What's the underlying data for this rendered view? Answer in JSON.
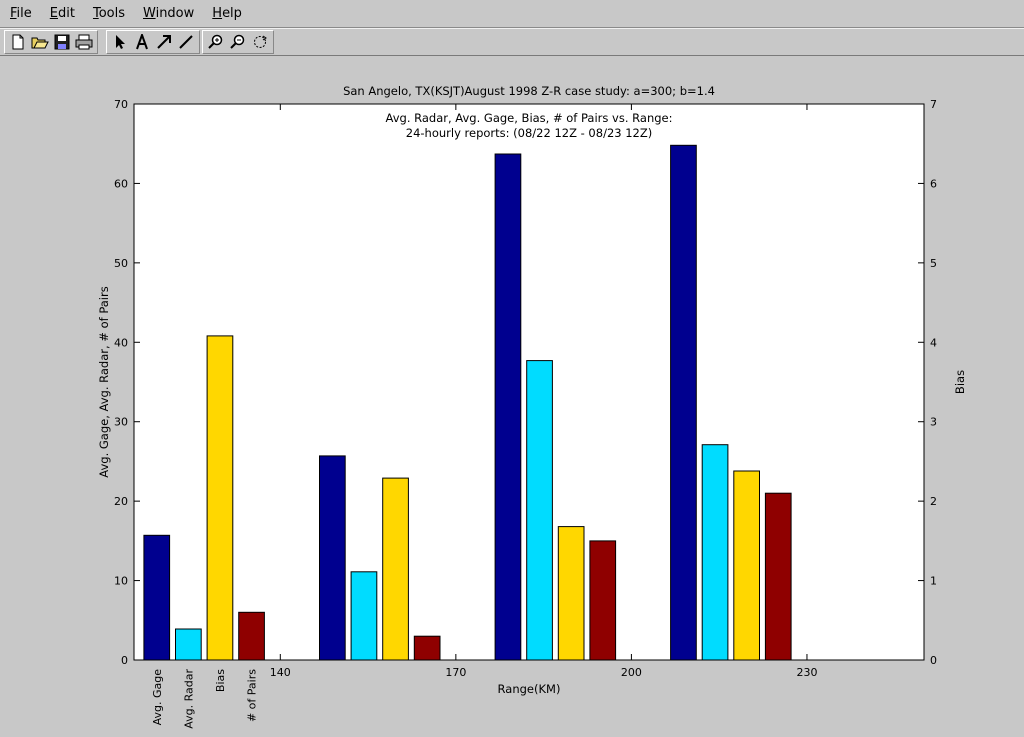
{
  "menu": {
    "items": [
      "File",
      "Edit",
      "Tools",
      "Window",
      "Help"
    ]
  },
  "toolbar": {
    "tools": [
      "new-file-icon",
      "open-folder-icon",
      "save-icon",
      "print-icon",
      "select-arrow-icon",
      "text-tool-icon",
      "arrow-tool-icon",
      "line-tool-icon",
      "zoom-in-icon",
      "zoom-out-icon",
      "rotate-icon"
    ]
  },
  "chart_data": {
    "type": "bar",
    "title": "San Angelo, TX(KSJT)August 1998 Z-R case study: a=300; b=1.4",
    "subtitle_lines": [
      "Avg. Radar, Avg. Gage, Bias, # of Pairs vs. Range:",
      "24-hourly reports: (08/22 12Z - 08/23 12Z)"
    ],
    "xlabel": "Range(KM)",
    "ylabel_left": "Avg. Gage, Avg. Radar, # of Pairs",
    "ylabel_right": "Bias",
    "ylim_left": [
      0,
      70
    ],
    "ylim_right": [
      0,
      7
    ],
    "left_ticks": [
      0,
      10,
      20,
      30,
      40,
      50,
      60,
      70
    ],
    "right_ticks": [
      0,
      1,
      2,
      3,
      4,
      5,
      6,
      7
    ],
    "x_ticks": [
      140,
      170,
      200,
      230
    ],
    "xlim": [
      115,
      250
    ],
    "group_centers": [
      127,
      157,
      187,
      217
    ],
    "bar_offsets": [
      -8.1,
      -2.7,
      2.7,
      8.1
    ],
    "bar_width": 4.4,
    "category_labels": [
      "Avg. Gage",
      "Avg. Radar",
      "Bias",
      "# of Pairs"
    ],
    "series": [
      {
        "name": "Avg. Gage",
        "color": "#00008f",
        "values": [
          15.7,
          25.7,
          63.7,
          64.8
        ]
      },
      {
        "name": "Avg. Radar",
        "color": "#00dcff",
        "values": [
          3.9,
          11.1,
          37.7,
          27.1
        ]
      },
      {
        "name": "Bias",
        "color": "#ffd700",
        "values": [
          4.08,
          2.29,
          1.68,
          2.38
        ]
      },
      {
        "name": "# of Pairs",
        "color": "#8f0000",
        "values": [
          6.0,
          3.0,
          15.0,
          21.0
        ]
      }
    ]
  }
}
